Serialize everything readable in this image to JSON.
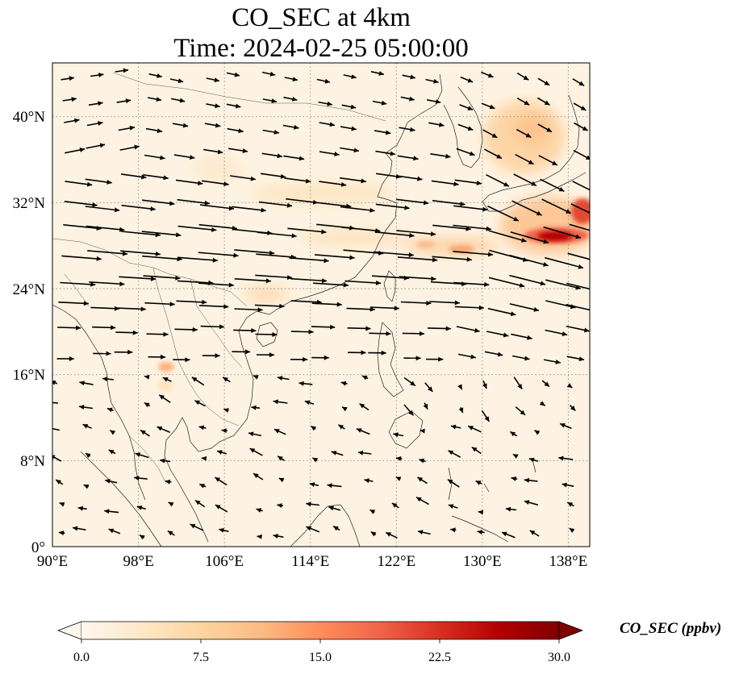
{
  "title_line1": "CO_SEC at 4km",
  "title_line2": "Time: 2024-02-25 05:00:00",
  "map": {
    "lon_range": [
      90,
      140
    ],
    "lat_range": [
      0,
      45
    ],
    "lon_ticks": [
      "90°E",
      "98°E",
      "106°E",
      "114°E",
      "122°E",
      "130°E",
      "138°E"
    ],
    "lat_ticks": [
      "0°",
      "8°N",
      "16°N",
      "24°N",
      "32°N",
      "40°N"
    ],
    "gridlines": "dotted"
  },
  "colorbar": {
    "label": "CO_SEC (ppbv)",
    "ticks": [
      "0.0",
      "7.5",
      "15.0",
      "22.5",
      "30.0"
    ],
    "range": [
      0,
      30
    ],
    "colormap": "OrRd",
    "colors": [
      "#fff7ec",
      "#fee8c8",
      "#fdd49e",
      "#fdbb84",
      "#fc8d59",
      "#ef6548",
      "#d7301f",
      "#b30000",
      "#7f0000"
    ],
    "extend": "both"
  }
}
